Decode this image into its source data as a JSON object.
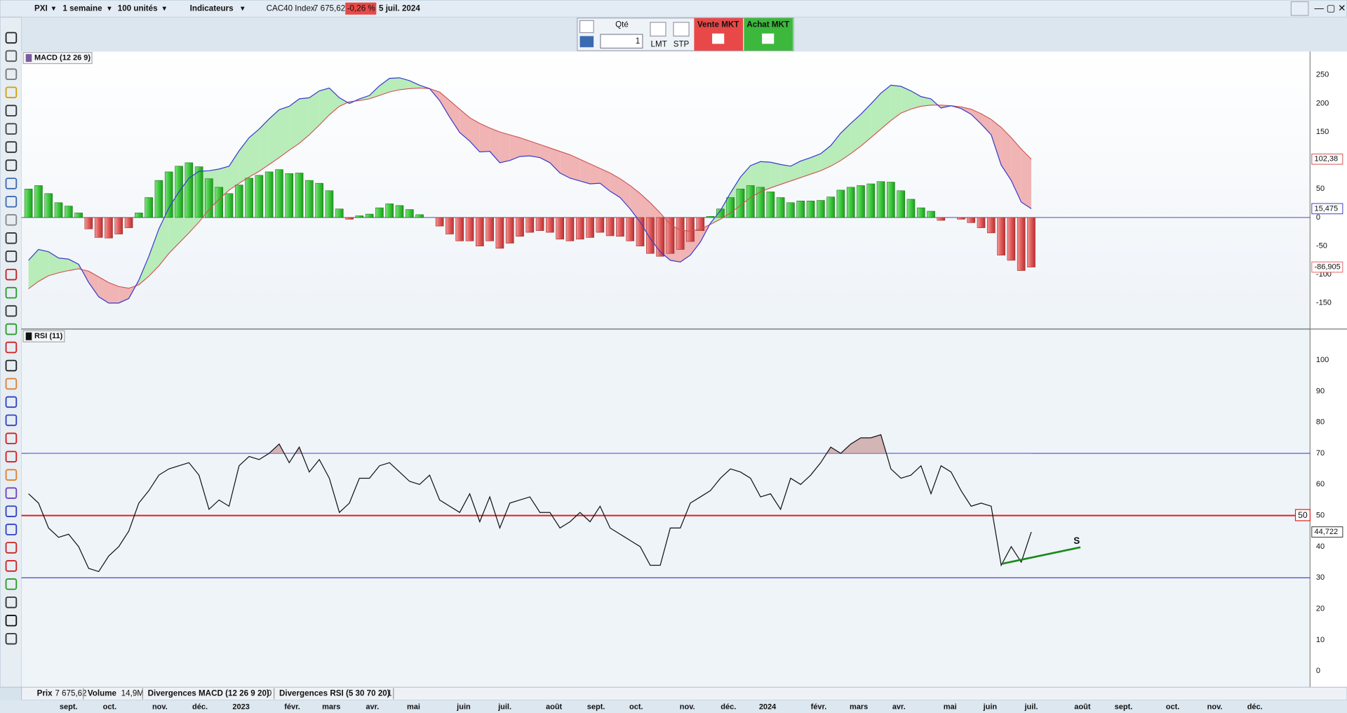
{
  "toolbar": {
    "market": "PXI",
    "period": "1 semaine",
    "quantity_unit": "100 unités",
    "indicators": "Indicateurs",
    "instrument": "CAC40 Index",
    "price": "7 675,62",
    "change": "-0,26 %",
    "date": "5 juil. 2024"
  },
  "order_panel": {
    "qty_label": "Qté",
    "qty": 1,
    "limit": "LMT",
    "stop": "STP",
    "sell": "Vente MKT",
    "buy": "Achat MKT"
  },
  "xlim": [
    -0.7,
    127.8
  ],
  "xticks": [
    {
      "value": 4.0,
      "label": "sept."
    },
    {
      "value": 8.1,
      "label": "oct."
    },
    {
      "value": 13.1,
      "label": "nov."
    },
    {
      "value": 17.1,
      "label": "déc."
    },
    {
      "value": 21.2,
      "label": "2023"
    },
    {
      "value": 26.3,
      "label": "févr."
    },
    {
      "value": 30.2,
      "label": "mars"
    },
    {
      "value": 34.3,
      "label": "avr."
    },
    {
      "value": 38.4,
      "label": "mai"
    },
    {
      "value": 43.4,
      "label": "juin"
    },
    {
      "value": 47.5,
      "label": "juil."
    },
    {
      "value": 52.4,
      "label": "août"
    },
    {
      "value": 56.6,
      "label": "sept."
    },
    {
      "value": 60.6,
      "label": "oct."
    },
    {
      "value": 65.7,
      "label": "nov."
    },
    {
      "value": 69.8,
      "label": "déc."
    },
    {
      "value": 73.7,
      "label": "2024"
    },
    {
      "value": 78.8,
      "label": "févr."
    },
    {
      "value": 82.8,
      "label": "mars"
    },
    {
      "value": 86.8,
      "label": "avr."
    },
    {
      "value": 91.9,
      "label": "mai"
    },
    {
      "value": 95.9,
      "label": "juin"
    },
    {
      "value": 100,
      "label": "juil."
    },
    {
      "value": 105.1,
      "label": "août"
    },
    {
      "value": 109.2,
      "label": "sept."
    },
    {
      "value": 114.1,
      "label": "oct."
    },
    {
      "value": 118.3,
      "label": "nov."
    },
    {
      "value": 122.3,
      "label": "déc."
    }
  ],
  "macd": {
    "title": "MACD (12 26 9)",
    "ylim": [
      -194,
      291
    ],
    "yticks": [
      -150,
      -100,
      -50,
      0,
      50,
      100,
      150,
      200,
      250
    ],
    "histogram": {
      "up_color": "#44cc44",
      "down_color": "#e06464",
      "last_label": "-86,905",
      "values": [
        50,
        56,
        42,
        26,
        20,
        8,
        -20,
        -35,
        -36,
        -29,
        -18,
        8,
        35,
        65,
        80,
        90,
        96,
        89,
        68,
        53,
        42,
        57,
        69,
        74,
        80,
        84,
        77,
        78,
        65,
        60,
        47,
        15,
        -3,
        3,
        6,
        17,
        24,
        21,
        14,
        5,
        0,
        -15,
        -29,
        -41,
        -41,
        -50,
        -41,
        -54,
        -45,
        -33,
        -26,
        -23,
        -26,
        -38,
        -41,
        -38,
        -35,
        -26,
        -32,
        -33,
        -41,
        -50,
        -63,
        -68,
        -63,
        -56,
        -42,
        -23,
        2,
        15,
        35,
        50,
        56,
        53,
        45,
        35,
        26,
        29,
        29,
        30,
        36,
        48,
        53,
        56,
        59,
        63,
        62,
        47,
        32,
        17,
        11,
        -5,
        0,
        -3,
        -9,
        -18,
        -27,
        -66,
        -75,
        -93,
        -86.905
      ]
    },
    "macd_line": {
      "color": "#3a3ad0",
      "last_label": "15,475",
      "values": [
        -75,
        -56,
        -60,
        -71,
        -73,
        -82,
        -114,
        -139,
        -150,
        -150,
        -142,
        -110,
        -68,
        -20,
        17,
        45,
        69,
        81,
        82,
        85,
        90,
        117,
        140,
        155,
        173,
        189,
        195,
        208,
        210,
        222,
        227,
        210,
        200,
        208,
        214,
        231,
        244,
        245,
        240,
        232,
        226,
        205,
        176,
        149,
        134,
        115,
        116,
        96,
        100,
        107,
        108,
        105,
        96,
        78,
        69,
        64,
        59,
        60,
        46,
        35,
        15,
        -8,
        -37,
        -60,
        -75,
        -78,
        -66,
        -43,
        -10,
        12,
        43,
        71,
        91,
        98,
        97,
        93,
        90,
        99,
        105,
        112,
        126,
        148,
        165,
        181,
        199,
        218,
        232,
        230,
        222,
        212,
        208,
        192,
        196,
        191,
        181,
        164,
        145,
        92,
        65,
        27,
        15.475
      ]
    },
    "signal_line": {
      "color": "#d05050",
      "last_label": "102,38",
      "values": [
        -125,
        -112,
        -102,
        -97,
        -93,
        -90,
        -94,
        -104,
        -114,
        -121,
        -124,
        -118,
        -103,
        -85,
        -63,
        -45,
        -27,
        -8,
        14,
        32,
        48,
        60,
        71,
        81,
        93,
        105,
        118,
        130,
        145,
        162,
        180,
        195,
        203,
        205,
        208,
        214,
        220,
        224,
        226,
        227,
        226,
        220,
        205,
        190,
        175,
        165,
        157,
        150,
        145,
        140,
        134,
        128,
        122,
        116,
        110,
        102,
        94,
        86,
        78,
        68,
        56,
        42,
        26,
        8,
        -12,
        -22,
        -24,
        -20,
        -12,
        -3,
        8,
        21,
        35,
        45,
        52,
        58,
        64,
        70,
        76,
        82,
        90,
        100,
        112,
        125,
        140,
        155,
        170,
        183,
        190,
        195,
        197,
        197,
        196,
        194,
        190,
        182,
        172,
        158,
        140,
        120,
        102.38
      ]
    },
    "fill_up_color": "#b8ecb8",
    "fill_down_color": "#f0b4b4"
  },
  "rsi": {
    "title": "RSI (11)",
    "ylim": [
      -5.2,
      109.7
    ],
    "yticks": [
      0,
      10,
      20,
      30,
      40,
      50,
      60,
      70,
      80,
      90,
      100
    ],
    "upper_level": 70,
    "lower_level": 30,
    "mid_level": 50,
    "color": "#111111",
    "last_label": "44,722",
    "values": [
      57,
      54,
      46,
      43,
      44,
      40,
      33,
      32,
      37,
      40,
      45,
      54,
      58,
      63,
      65,
      66,
      67,
      63,
      52,
      55,
      53,
      66,
      69,
      68,
      70,
      73,
      67,
      72,
      64,
      68,
      62,
      51,
      54,
      62,
      62,
      66,
      67,
      64,
      61,
      60,
      63,
      55,
      53,
      51,
      57,
      48,
      56,
      46,
      54,
      55,
      56,
      51,
      51,
      46,
      48,
      51,
      48,
      53,
      46,
      44,
      42,
      40,
      34,
      34,
      46,
      46,
      54,
      56,
      58,
      62,
      65,
      64,
      62,
      56,
      57,
      52,
      62,
      60,
      63,
      67,
      72,
      70,
      73,
      75,
      75,
      76,
      65,
      62,
      63,
      66,
      57,
      66,
      64,
      58,
      53,
      54,
      53,
      34,
      40,
      35,
      44.722
    ],
    "divergence": {
      "label": "S",
      "color": "#1a8a1a",
      "start": {
        "index": 97.1,
        "value": 34.5
      },
      "end": {
        "index": 104.9,
        "value": 39.8
      }
    }
  },
  "status_bar": {
    "price_label": "Prix",
    "price": "7 675,62",
    "volume_label": "Volume",
    "volume": "14,9M",
    "macd_div_label": "Divergences MACD (12 26 9 20)",
    "macd_div": 0,
    "rsi_div_label": "Divergences RSI (5 30 70 20)",
    "rsi_div": 1
  }
}
